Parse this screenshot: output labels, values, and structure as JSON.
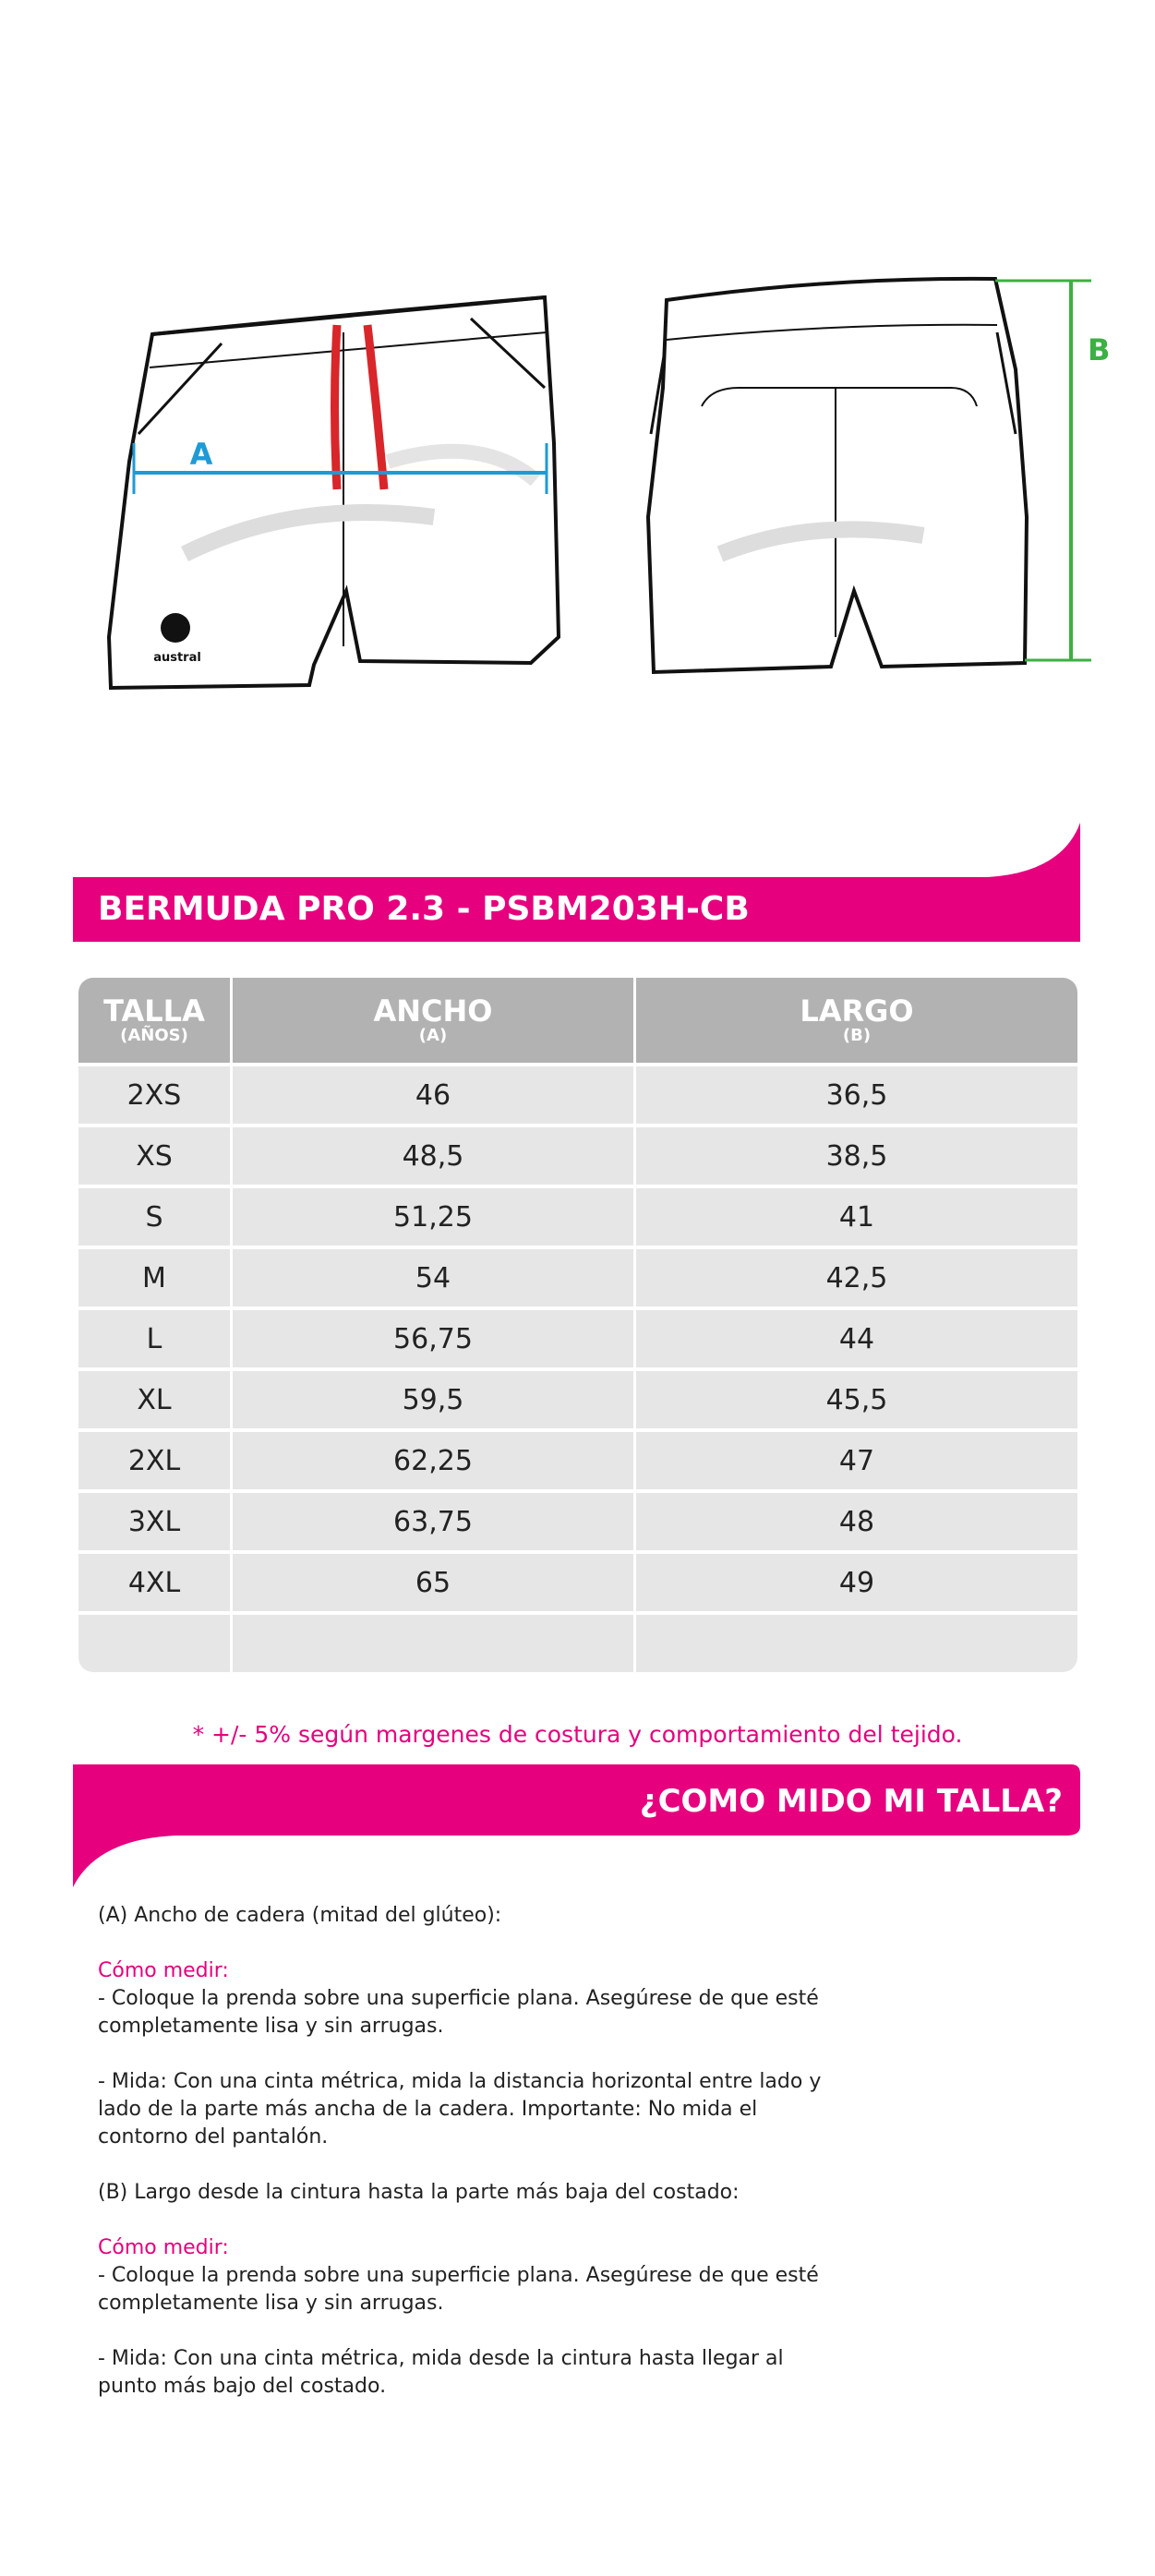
{
  "drawing": {
    "label_a": "A",
    "label_b": "B",
    "logo": "austral"
  },
  "title": "BERMUDA PRO 2.3 - PSBM203H-CB",
  "table": {
    "header": [
      [
        "TALLA",
        "(AÑOS)"
      ],
      [
        "ANCHO",
        "(A)"
      ],
      [
        "LARGO",
        "(B)"
      ]
    ],
    "rows": [
      [
        "2XS",
        "46",
        "36,5"
      ],
      [
        "XS",
        "48,5",
        "38,5"
      ],
      [
        "S",
        "51,25",
        "41"
      ],
      [
        "M",
        "54",
        "42,5"
      ],
      [
        "L",
        "56,75",
        "44"
      ],
      [
        "XL",
        "59,5",
        "45,5"
      ],
      [
        "2XL",
        "62,25",
        "47"
      ],
      [
        "3XL",
        "63,75",
        "48"
      ],
      [
        "4XL",
        "65",
        "49"
      ]
    ]
  },
  "note": "* +/- 5% según margenes de costura y comportamiento del tejido.",
  "howto_title": "¿COMO MIDO MI TALLA?",
  "instructions": [
    {
      "text": "(A) Ancho de cadera (mitad del glúteo):"
    },
    {
      "heading": "Cómo medir:",
      "text": "- Coloque la prenda sobre una superficie plana. Asegúrese de que esté completamente lisa y sin arrugas."
    },
    {
      "text": "- Mida: Con una cinta métrica, mida la distancia horizontal entre lado y lado de la parte más ancha de la cadera. Importante: No mida el contorno del pantalón."
    },
    {
      "text": "(B) Largo desde la cintura hasta la parte más baja del costado:"
    },
    {
      "heading": "Cómo medir:",
      "text": "- Coloque la prenda sobre una superficie plana. Asegúrese de que esté completamente lisa y sin arrugas."
    },
    {
      "text": "- Mida: Con una cinta métrica, mida desde la cintura hasta llegar al punto más bajo del costado."
    }
  ]
}
